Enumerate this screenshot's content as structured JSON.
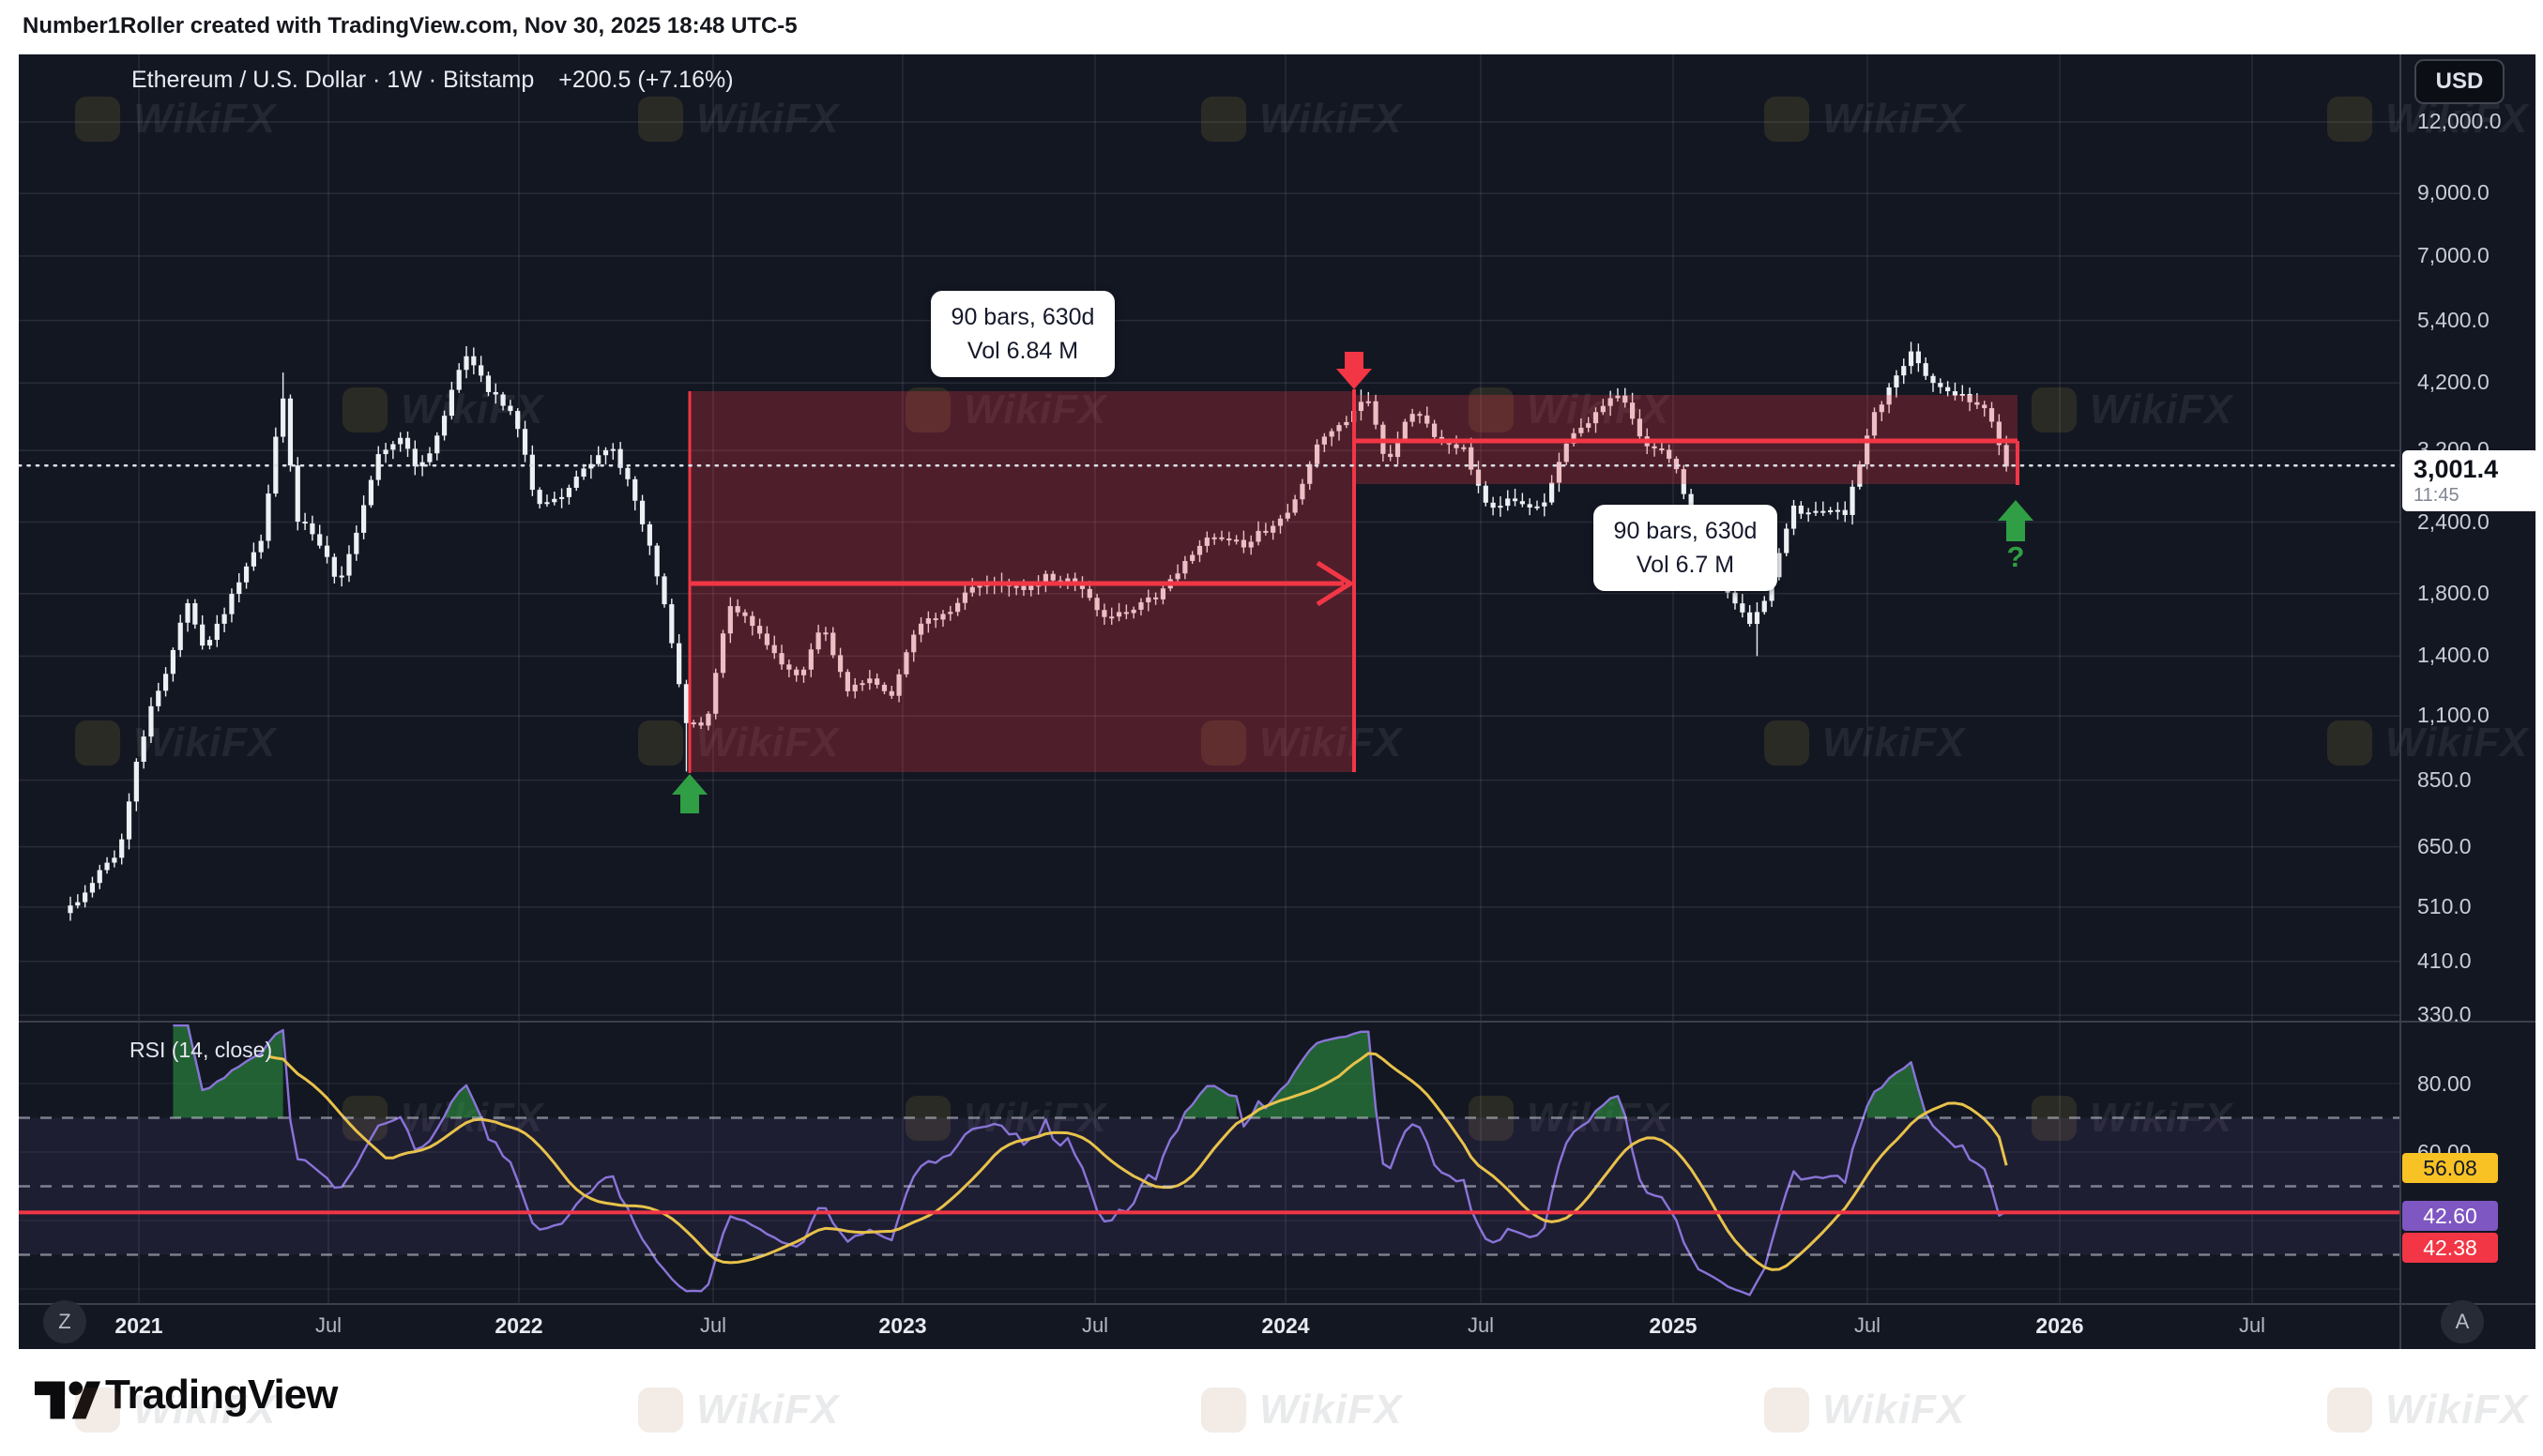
{
  "topbar": {
    "text": "Number1Roller created with TradingView.com, Nov 30, 2025 18:48 UTC-5"
  },
  "legend": {
    "title": "Ethereum / U.S. Dollar · 1W · Bitstamp",
    "change": "+200.5 (+7.16%)"
  },
  "currency_button": "USD",
  "price_axis": {
    "labels": [
      {
        "label": "12,000.0",
        "value": 12000
      },
      {
        "label": "9,000.0",
        "value": 9000
      },
      {
        "label": "7,000.0",
        "value": 7000
      },
      {
        "label": "5,400.0",
        "value": 5400
      },
      {
        "label": "4,200.0",
        "value": 4200
      },
      {
        "label": "3,200.0",
        "value": 3200
      },
      {
        "label": "2,400.0",
        "value": 2400
      },
      {
        "label": "1,800.0",
        "value": 1800
      },
      {
        "label": "1,400.0",
        "value": 1400
      },
      {
        "label": "1,100.0",
        "value": 1100
      },
      {
        "label": "850.0",
        "value": 850
      },
      {
        "label": "650.0",
        "value": 650
      },
      {
        "label": "510.0",
        "value": 510
      },
      {
        "label": "410.0",
        "value": 410
      },
      {
        "label": "330.0",
        "value": 330
      }
    ],
    "current": {
      "price": "3,001.4",
      "countdown": "11:45",
      "value": 3001.4
    }
  },
  "time_axis": {
    "labels": [
      {
        "label": "2021",
        "type": "year"
      },
      {
        "label": "Jul",
        "type": "month"
      },
      {
        "label": "2022",
        "type": "year"
      },
      {
        "label": "Jul",
        "type": "month"
      },
      {
        "label": "2023",
        "type": "year"
      },
      {
        "label": "Jul",
        "type": "month"
      },
      {
        "label": "2024",
        "type": "year"
      },
      {
        "label": "Jul",
        "type": "month"
      },
      {
        "label": "2025",
        "type": "year"
      },
      {
        "label": "Jul",
        "type": "month"
      },
      {
        "label": "2026",
        "type": "year"
      },
      {
        "label": "Jul",
        "type": "month"
      }
    ],
    "left_badge": "Z",
    "right_badge": "A"
  },
  "tooltips": [
    {
      "line1": "90 bars, 630d",
      "line2": "Vol 6.84 M"
    },
    {
      "line1": "90 bars, 630d",
      "line2": "Vol 6.7 M"
    }
  ],
  "annotations": {
    "question_mark": "?"
  },
  "rsi": {
    "label": "RSI (14, close)",
    "axis_labels": [
      {
        "label": "80.00",
        "value": 80
      },
      {
        "label": "60.00",
        "value": 60
      }
    ],
    "ma_badge": "56.08",
    "rsi_badge": "42.60",
    "level_badge": "42.38"
  },
  "watermark": {
    "text": "WikiFX"
  },
  "footer": {
    "brand": "TradingView"
  },
  "colors": {
    "background": "#131722",
    "candle": "#edf0f4",
    "red": "#f23645",
    "green": "#2f9e44",
    "rsi_purple": "#8a74d8",
    "rsi_yellow": "#e8c24a",
    "badge_yellow": "#f8c224",
    "badge_purple": "#7e57c2",
    "badge_red": "#f23645"
  },
  "chart_data": {
    "type": "candlestick",
    "title": "Ethereum / U.S. Dollar",
    "interval": "1W",
    "exchange": "Bitstamp",
    "scale": "log",
    "last_price": 3001.4,
    "change": {
      "abs": 200.5,
      "pct": 7.16
    },
    "ylim": [
      330,
      12000
    ],
    "y_ticks": [
      12000,
      9000,
      7000,
      5400,
      4200,
      3200,
      2400,
      1800,
      1400,
      1100,
      850,
      650,
      510,
      410,
      330
    ],
    "x_ticks": [
      "2021",
      "Jul",
      "2022",
      "Jul",
      "2023",
      "Jul",
      "2024",
      "Jul",
      "2025",
      "Jul",
      "2026",
      "Jul"
    ],
    "monthly_close_anchors": {
      "format": "[months_since_2021_01, close_usd]",
      "points": [
        [
          -2.6,
          470
        ],
        [
          -1.5,
          560
        ],
        [
          -0.6,
          640
        ],
        [
          0.3,
          1100
        ],
        [
          0.9,
          1310
        ],
        [
          1.5,
          1760
        ],
        [
          2.1,
          1420
        ],
        [
          2.7,
          1680
        ],
        [
          3.3,
          1960
        ],
        [
          3.9,
          2250
        ],
        [
          4.2,
          2950
        ],
        [
          4.5,
          4160
        ],
        [
          4.9,
          2480
        ],
        [
          5.5,
          2250
        ],
        [
          6.3,
          1890
        ],
        [
          6.9,
          2300
        ],
        [
          7.5,
          3150
        ],
        [
          8.3,
          3430
        ],
        [
          8.8,
          2950
        ],
        [
          9.4,
          3380
        ],
        [
          9.9,
          4170
        ],
        [
          10.3,
          4640
        ],
        [
          11.0,
          4100
        ],
        [
          11.8,
          3690
        ],
        [
          12.5,
          2560
        ],
        [
          13.3,
          2620
        ],
        [
          13.9,
          2930
        ],
        [
          14.8,
          3280
        ],
        [
          15.5,
          2760
        ],
        [
          16.3,
          1970
        ],
        [
          17.2,
          1080
        ],
        [
          17.9,
          1070
        ],
        [
          18.6,
          1700
        ],
        [
          19.5,
          1560
        ],
        [
          20.3,
          1330
        ],
        [
          20.9,
          1290
        ],
        [
          21.5,
          1580
        ],
        [
          22.3,
          1210
        ],
        [
          22.9,
          1280
        ],
        [
          23.7,
          1200
        ],
        [
          24.5,
          1580
        ],
        [
          25.3,
          1640
        ],
        [
          26.2,
          1820
        ],
        [
          27.1,
          1900
        ],
        [
          27.9,
          1830
        ],
        [
          28.6,
          1930
        ],
        [
          29.5,
          1870
        ],
        [
          30.3,
          1650
        ],
        [
          31.2,
          1660
        ],
        [
          32.1,
          1790
        ],
        [
          33.0,
          2060
        ],
        [
          33.9,
          2290
        ],
        [
          34.8,
          2200
        ],
        [
          35.6,
          2350
        ],
        [
          36.4,
          2580
        ],
        [
          37.2,
          3380
        ],
        [
          38.2,
          3640
        ],
        [
          38.6,
          4030
        ],
        [
          39.3,
          3010
        ],
        [
          40.1,
          3760
        ],
        [
          40.9,
          3380
        ],
        [
          41.7,
          3230
        ],
        [
          42.5,
          2510
        ],
        [
          43.3,
          2650
        ],
        [
          44.2,
          2510
        ],
        [
          45.0,
          3340
        ],
        [
          45.9,
          3700
        ],
        [
          46.6,
          4010
        ],
        [
          47.4,
          3330
        ],
        [
          48.3,
          3110
        ],
        [
          49.1,
          2230
        ],
        [
          50.0,
          1820
        ],
        [
          50.7,
          1580
        ],
        [
          51.3,
          1790
        ],
        [
          52.1,
          2530
        ],
        [
          53.0,
          2480
        ],
        [
          53.8,
          2500
        ],
        [
          54.6,
          3630
        ],
        [
          55.3,
          4260
        ],
        [
          55.8,
          4720
        ],
        [
          56.6,
          4150
        ],
        [
          57.3,
          4000
        ],
        [
          58.1,
          3850
        ],
        [
          58.6,
          3300
        ],
        [
          59.0,
          3001.4
        ]
      ]
    },
    "wick_extremes": [
      {
        "m": 4.5,
        "high": 4380
      },
      {
        "m": 10.35,
        "high": 4870
      },
      {
        "m": 17.25,
        "low": 880
      },
      {
        "m": 38.6,
        "high": 4090
      },
      {
        "m": 50.9,
        "low": 1400
      },
      {
        "m": 55.8,
        "high": 4955
      },
      {
        "m": 59.0,
        "low": 2650
      }
    ],
    "measurements": [
      {
        "label": "90 bars, 630d",
        "volume": "6.84 M",
        "from": "mid-Jun 2022",
        "to": "mid-Mar 2024",
        "price_range_usd": [
          880,
          4060
        ]
      },
      {
        "label": "90 bars, 630d",
        "volume": "6.7 M",
        "from": "mid-Mar 2024",
        "to": "Dec 2025",
        "price_range_usd": [
          2800,
          4000
        ],
        "level_usd": 3330
      }
    ],
    "markers": [
      {
        "type": "arrow-up",
        "color": "green",
        "time": "Jun 2022",
        "price": 850
      },
      {
        "type": "arrow-down",
        "color": "red",
        "time": "Mar 2024",
        "price": 4200
      },
      {
        "type": "arrow-up",
        "color": "green",
        "time": "Nov 2025",
        "price": 2500,
        "note": "?"
      }
    ],
    "rsi_panel": {
      "type": "line",
      "label": "RSI (14, close)",
      "length": 14,
      "source": "close",
      "rsi_last": 42.6,
      "ma_last": 56.08,
      "level_line": 42.38,
      "dashed_levels": [
        70,
        50,
        30
      ],
      "grid_levels": [
        80,
        60,
        40,
        20
      ],
      "band": [
        30,
        70
      ]
    }
  }
}
